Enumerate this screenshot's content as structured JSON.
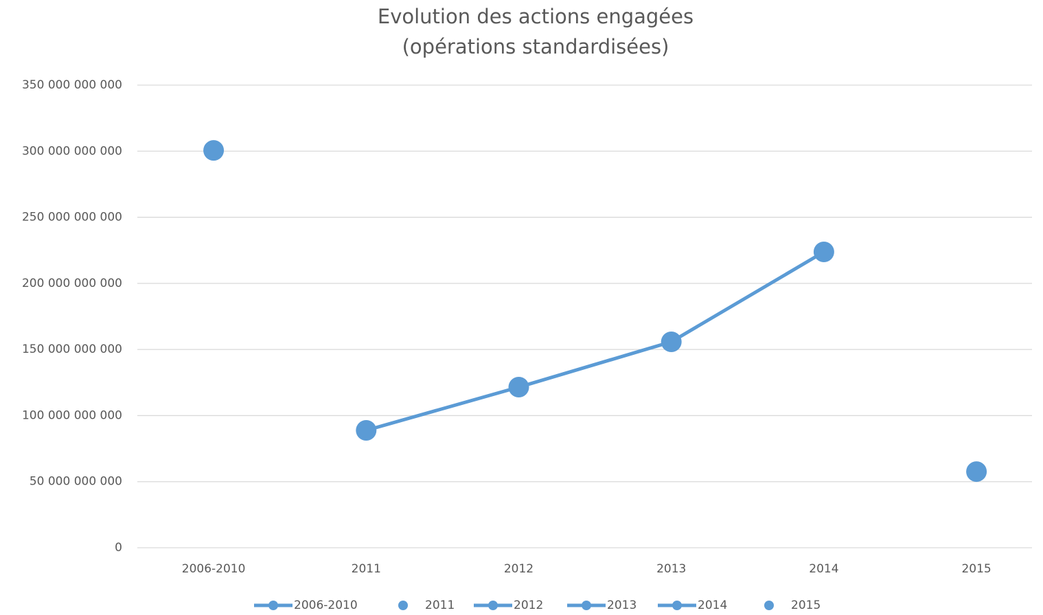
{
  "chart_data": {
    "type": "line",
    "title": [
      "Evolution des actions engagées",
      "(opérations standardisées)"
    ],
    "categories": [
      "2006-2010",
      "2011",
      "2012",
      "2013",
      "2014",
      "2015"
    ],
    "values": [
      300600000000,
      88800000000,
      121500000000,
      155800000000,
      223800000000,
      57600000000
    ],
    "color": "#5b9bd5",
    "ylim": [
      0,
      350000000000
    ],
    "yticks": [
      0,
      {
        "value": 50000000000,
        "label": "50 000 000 000"
      },
      {
        "value": 100000000000,
        "label": "100 000 000 000"
      },
      {
        "value": 150000000000,
        "label": "150 000 000 000"
      },
      {
        "value": 200000000000,
        "label": "200 000 000 000"
      },
      {
        "value": 250000000000,
        "label": "250 000 000 000"
      },
      {
        "value": 300000000000,
        "label": "300 000 000 000"
      },
      {
        "value": 350000000000,
        "label": "350 000 000 000"
      }
    ],
    "grid": true,
    "legend": {
      "position": "bottom",
      "entries": [
        {
          "name": "2006-2010",
          "line": true
        },
        {
          "name": "2011",
          "line": false
        },
        {
          "name": "2012",
          "line": true
        },
        {
          "name": "2013",
          "line": true
        },
        {
          "name": "2014",
          "line": true
        },
        {
          "name": "2015",
          "line": false
        }
      ]
    }
  }
}
